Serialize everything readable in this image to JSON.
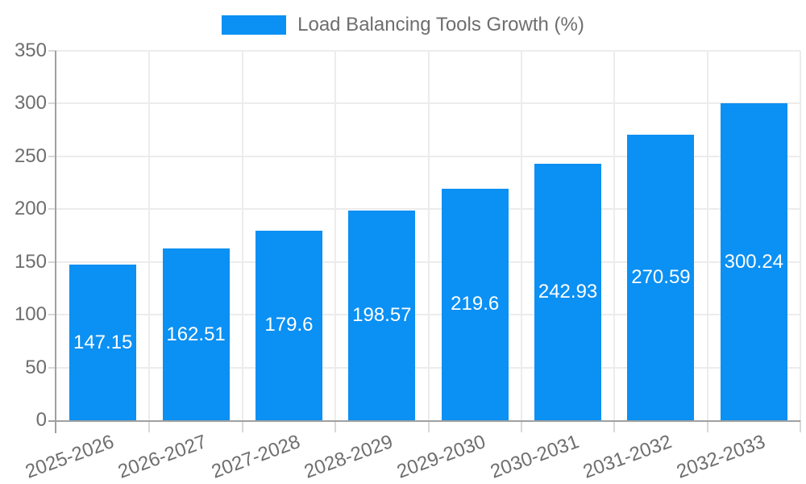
{
  "legend": {
    "label": "Load Balancing Tools Growth (%)",
    "position": "top"
  },
  "colors": {
    "bar": "#0b90f3",
    "label_text": "#6e6e6e",
    "value_text": "#ffffff",
    "grid": "#ececec",
    "tick": "#d8d8d8",
    "axis": "#a0a0a0",
    "background": "#ffffff"
  },
  "chart_data": {
    "type": "bar",
    "title": "Load Balancing Tools Growth (%)",
    "categories": [
      "2025-2026",
      "2026-2027",
      "2027-2028",
      "2028-2029",
      "2029-2030",
      "2030-2031",
      "2031-2032",
      "2032-2033"
    ],
    "values": [
      147.15,
      162.51,
      179.6,
      198.57,
      219.6,
      242.93,
      270.59,
      300.24
    ],
    "xlabel": "",
    "ylabel": "",
    "ylim": [
      0,
      350
    ],
    "yticks": [
      0,
      50,
      100,
      150,
      200,
      250,
      300,
      350
    ],
    "grid": true,
    "legend_position": "top",
    "x_tick_rotation_deg": -20,
    "value_labels_inside_bars": true
  }
}
